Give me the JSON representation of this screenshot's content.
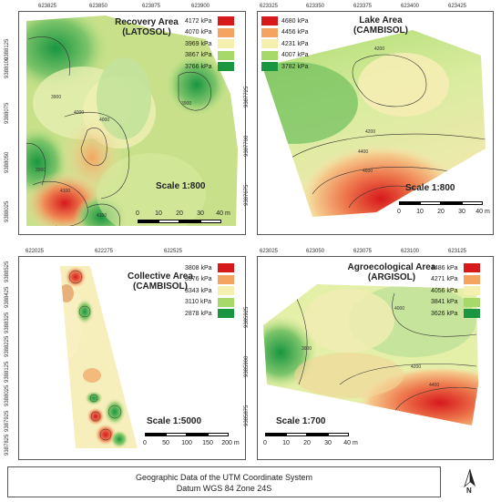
{
  "panels": {
    "recovery": {
      "title": "Recovery Area\n(LATOSOL)",
      "scale": "Scale 1:800",
      "x_ticks": [
        "623825",
        "623850",
        "623875",
        "623900"
      ],
      "y_ticks": [
        "9388125",
        "9388100",
        "9388075",
        "9388050",
        "9388025"
      ],
      "legend": [
        {
          "label": "4172 kPa",
          "color": "#d7191c"
        },
        {
          "label": "4070 kPa",
          "color": "#f4a460"
        },
        {
          "label": "3969 kPa",
          "color": "#f5f0b0"
        },
        {
          "label": "3867 kPa",
          "color": "#a6d96a"
        },
        {
          "label": "3766 kPa",
          "color": "#1a9641"
        }
      ],
      "contours": [
        "4000",
        "3900",
        "4000",
        "3900",
        "3900",
        "4100",
        "4100"
      ],
      "scale_labels": [
        "0",
        "10",
        "20",
        "30",
        "40 m"
      ]
    },
    "lake": {
      "title": "Lake Area\n(CAMBISOL)",
      "scale": "Scale 1:800",
      "x_ticks": [
        "623325",
        "623350",
        "623375",
        "623400",
        "623425"
      ],
      "y_ticks": [
        "9387725",
        "9387700",
        "9387675"
      ],
      "legend": [
        {
          "label": "4680 kPa",
          "color": "#d7191c"
        },
        {
          "label": "4456 kPa",
          "color": "#f4a460"
        },
        {
          "label": "4231 kPa",
          "color": "#f5f0b0"
        },
        {
          "label": "4007 kPa",
          "color": "#a6d96a"
        },
        {
          "label": "3782 kPa",
          "color": "#1a9641"
        }
      ],
      "contours": [
        "4200",
        "4200",
        "4400",
        "4600"
      ],
      "scale_labels": [
        "0",
        "10",
        "20",
        "30",
        "40 m"
      ]
    },
    "collective": {
      "title": "Collective Area\n(CAMBISOL)",
      "scale": "Scale 1:5000",
      "x_ticks": [
        "622025",
        "622275",
        "622525"
      ],
      "y_ticks": [
        "9388525",
        "9388425",
        "9388325",
        "9388225",
        "9388125",
        "9388025",
        "9387925",
        "9387825"
      ],
      "legend": [
        {
          "label": "3808 kPa",
          "color": "#d7191c"
        },
        {
          "label": "3576 kPa",
          "color": "#f4a460"
        },
        {
          "label": "3343 kPa",
          "color": "#f5f0b0"
        },
        {
          "label": "3110 kPa",
          "color": "#a6d96a"
        },
        {
          "label": "2878 kPa",
          "color": "#1a9641"
        }
      ],
      "scale_labels": [
        "0",
        "50",
        "100",
        "150",
        "200 m"
      ]
    },
    "agro": {
      "title": "Agroecological Area\n(ARGISOL)",
      "scale": "Scale 1:700",
      "x_ticks": [
        "623025",
        "623050",
        "623075",
        "623100",
        "623125"
      ],
      "y_ticks": [
        "9385925",
        "9385900",
        "9385875"
      ],
      "legend": [
        {
          "label": "4486 kPa",
          "color": "#d7191c"
        },
        {
          "label": "4271 kPa",
          "color": "#f4a460"
        },
        {
          "label": "4056 kPa",
          "color": "#f5f0b0"
        },
        {
          "label": "3841 kPa",
          "color": "#a6d96a"
        },
        {
          "label": "3626 kPa",
          "color": "#1a9641"
        }
      ],
      "contours": [
        "3900",
        "4000",
        "4200",
        "4400"
      ],
      "scale_labels": [
        "0",
        "10",
        "20",
        "30",
        "40 m"
      ]
    }
  },
  "footer": {
    "line1": "Geographic Data of the UTM Coordinate System",
    "line2": "Datum WGS 84 Zone 24S"
  },
  "north_label": "N"
}
